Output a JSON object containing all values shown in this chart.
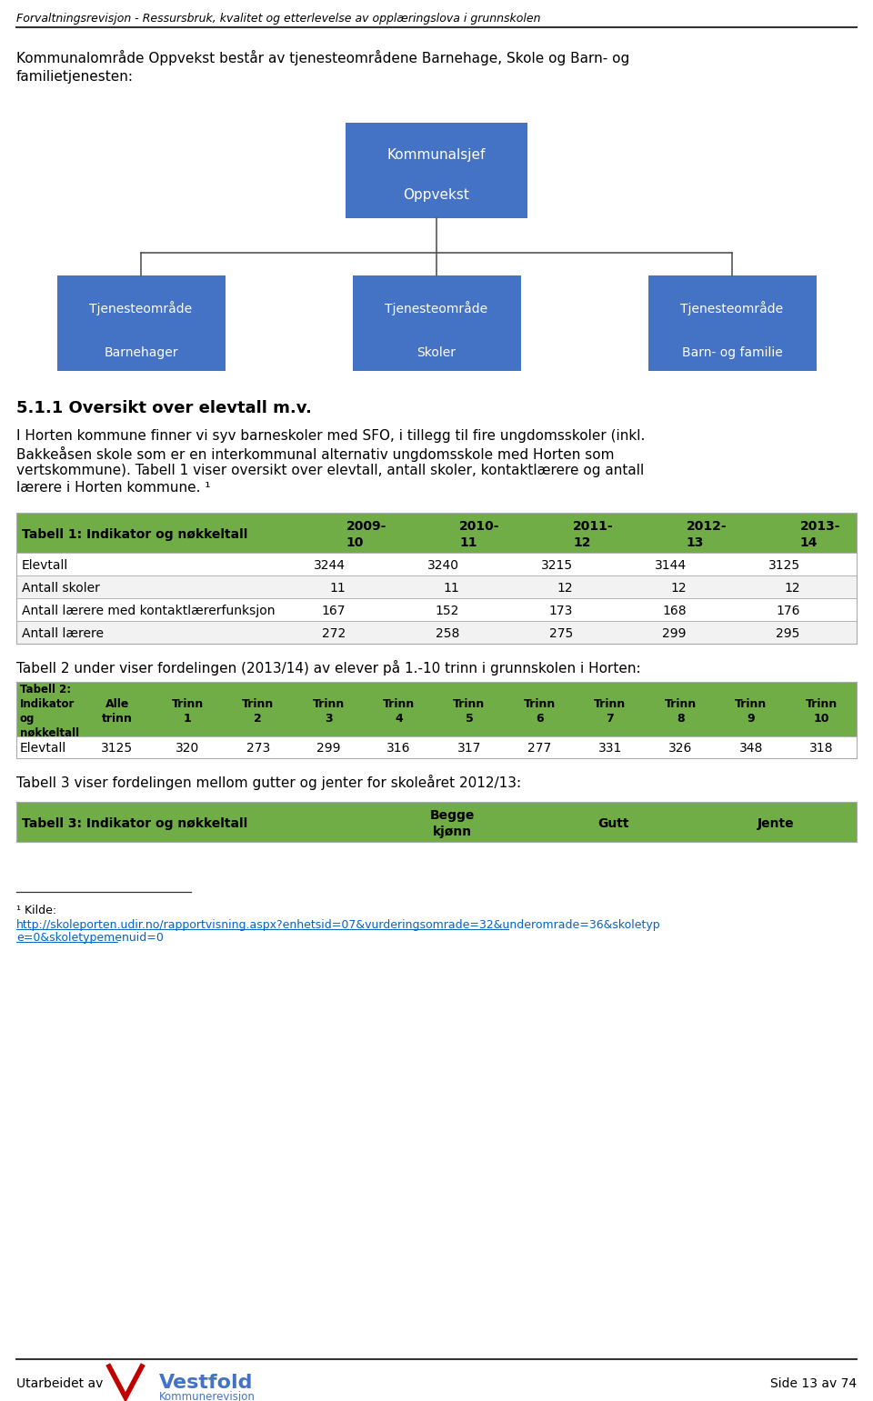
{
  "header_text": "Forvaltningsrevisjon - Ressursbruk, kvalitet og etterlevelse av opplæringslova i grunnskolen",
  "footer_left": "Utarbeidet av",
  "footer_right": "Side 13 av 74",
  "intro_line1": "Kommunalområde Oppvekst består av tjenesteområdene Barnehage, Skole og Barn- og",
  "intro_line2": "familietjenesten:",
  "org_box_color": "#4472C4",
  "org_text_color": "#FFFFFF",
  "org_root_label1": "Kommunalsjef",
  "org_root_label2": "Oppvekst",
  "org_children": [
    {
      "label1": "Tjenesteområde",
      "label2": "Barnehager"
    },
    {
      "label1": "Tjenesteområde",
      "label2": "Skoler"
    },
    {
      "label1": "Tjenesteområde",
      "label2": "Barn- og familie"
    }
  ],
  "section_title": "5.1.1 Oversikt over elevtall m.v.",
  "body_lines": [
    "I Horten kommune finner vi syv barneskoler med SFO, i tillegg til fire ungdomsskoler (inkl.",
    "Bakkeåsen skole som er en interkommunal alternativ ungdomsskole med Horten som",
    "vertskommune). Tabell 1 viser oversikt over elevtall, antall skoler, kontaktlærere og antall",
    "lærere i Horten kommune."
  ],
  "table_header_color": "#70AD47",
  "table_header_text_color": "#000000",
  "table1_title": "Tabell 1: Indikator og nøkkeltall",
  "table1_cols": [
    "2009-\n10",
    "2010-\n11",
    "2011-\n12",
    "2012-\n13",
    "2013-\n14"
  ],
  "table1_rows": [
    [
      "Elevtall",
      "3244",
      "3240",
      "3215",
      "3144",
      "3125"
    ],
    [
      "Antall skoler",
      "11",
      "11",
      "12",
      "12",
      "12"
    ],
    [
      "Antall lærere med kontaktlærerfunksjon",
      "167",
      "152",
      "173",
      "168",
      "176"
    ],
    [
      "Antall lærere",
      "272",
      "258",
      "275",
      "299",
      "295"
    ]
  ],
  "table2_intro": "Tabell 2 under viser fordelingen (2013/14) av elever på 1.-10 trinn i grunnskolen i Horten:",
  "table2_col1_header": "Tabell 2:\nIndikator\nog\nnøkkeltall",
  "table2_cols": [
    "Alle\ntrinn",
    "Trinn\n1",
    "Trinn\n2",
    "Trinn\n3",
    "Trinn\n4",
    "Trinn\n5",
    "Trinn\n6",
    "Trinn\n7",
    "Trinn\n8",
    "Trinn\n9",
    "Trinn\n10"
  ],
  "table2_rows": [
    [
      "Elevtall",
      "3125",
      "320",
      "273",
      "299",
      "316",
      "317",
      "277",
      "331",
      "326",
      "348",
      "318"
    ]
  ],
  "table3_intro": "Tabell 3 viser fordelingen mellom gutter og jenter for skoleåret 2012/13:",
  "table3_title": "Tabell 3: Indikator og nøkkeltall",
  "table3_cols": [
    "Begge\nkjønn",
    "Gutt",
    "Jente"
  ],
  "footnote_line1": "¹ Kilde:",
  "footnote_url_line1": "http://skoleporten.udir.no/rapportvisning.aspx?enhetsid=07&vurderingsomrade=32&underomrade=36&skoletyp",
  "footnote_url_line2": "e=0&skoletypemenuid=0",
  "url_color": "#0563C1",
  "bg_color": "#FFFFFF",
  "text_color": "#000000",
  "header_line_color": "#333333",
  "table_border_color": "#AAAAAA",
  "table_row_color_even": "#FFFFFF",
  "table_row_color_odd": "#F2F2F2"
}
